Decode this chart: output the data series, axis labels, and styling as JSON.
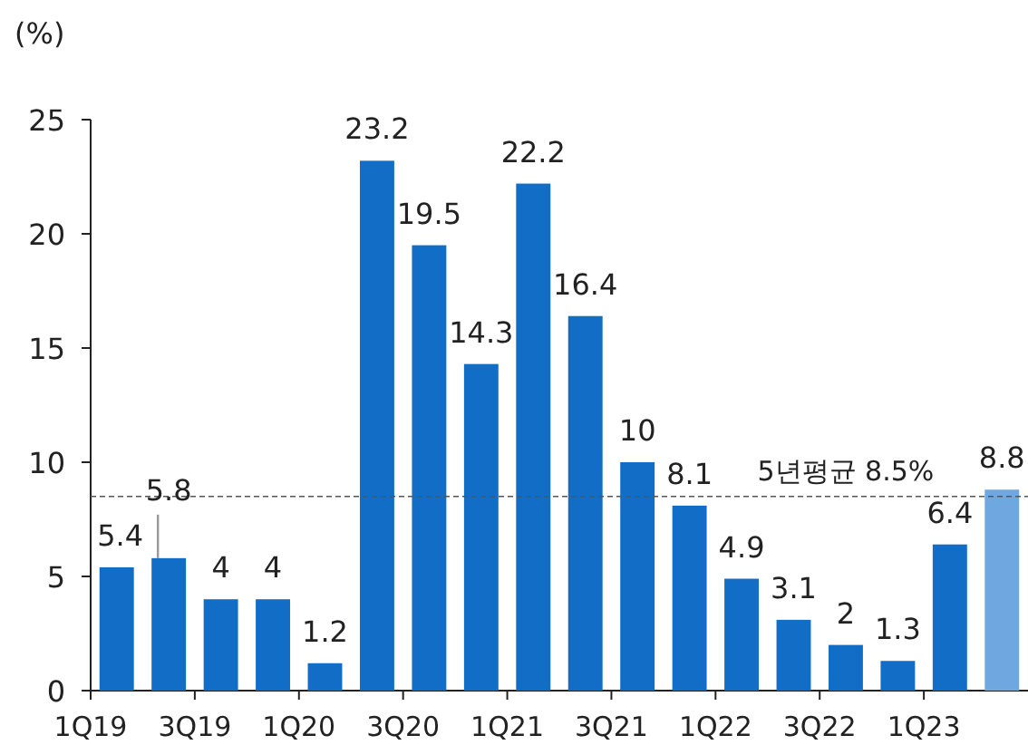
{
  "chart_data": {
    "type": "bar",
    "ylabel": "(%)",
    "categories": [
      "1Q19",
      null,
      "3Q19",
      null,
      "1Q20",
      null,
      "3Q20",
      null,
      "1Q21",
      null,
      "3Q21",
      null,
      "1Q22",
      null,
      "3Q22",
      null,
      "1Q23",
      null
    ],
    "values": [
      5.4,
      5.8,
      4,
      4,
      1.2,
      23.2,
      19.5,
      14.3,
      22.2,
      16.4,
      10,
      8.1,
      4.9,
      3.1,
      2,
      1.3,
      6.4,
      8.8
    ],
    "colors": [
      "#116dc6",
      "#116dc6",
      "#116dc6",
      "#116dc6",
      "#116dc6",
      "#116dc6",
      "#116dc6",
      "#116dc6",
      "#116dc6",
      "#116dc6",
      "#116dc6",
      "#116dc6",
      "#116dc6",
      "#116dc6",
      "#116dc6",
      "#116dc6",
      "#116dc6",
      "#6fa8e0"
    ],
    "ylim": [
      0,
      25
    ],
    "yticks": [
      0,
      5,
      10,
      15,
      20,
      25
    ],
    "data_labels": true,
    "ref_lines": [
      {
        "axis": "y",
        "value": 8.5,
        "label": "5년평균 8.5%",
        "line_style": "dashed",
        "color": "#555555"
      }
    ]
  }
}
